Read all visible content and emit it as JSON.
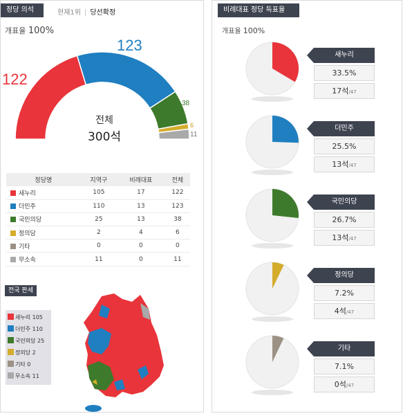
{
  "left": {
    "tab": "정당 의석수",
    "subtabs": {
      "first": "현재1위",
      "sep": "|",
      "second": "당선확정"
    },
    "turnout_label": "개표율",
    "turnout_value": "100%",
    "total_label": "전체",
    "total_value": "300석",
    "donut_labels": [
      "122",
      "123",
      "38",
      "6",
      "11"
    ],
    "table": {
      "headers": [
        "정당명",
        "지역구",
        "비례대표",
        "전체"
      ],
      "rows": [
        {
          "party": "새누리",
          "color": "#e8343a",
          "district": "105",
          "pr": "17",
          "total": "122"
        },
        {
          "party": "더민주",
          "color": "#1f7fc0",
          "district": "110",
          "pr": "13",
          "total": "123"
        },
        {
          "party": "국민의당",
          "color": "#3e7a2b",
          "district": "25",
          "pr": "13",
          "total": "38"
        },
        {
          "party": "정의당",
          "color": "#d4ac2c",
          "district": "2",
          "pr": "4",
          "total": "6"
        },
        {
          "party": "기타",
          "color": "#9b9185",
          "district": "0",
          "pr": "0",
          "total": "0"
        },
        {
          "party": "무소속",
          "color": "#a9a9a9",
          "district": "11",
          "pr": "0",
          "total": "11"
        }
      ]
    },
    "map_tab": "전국 판세",
    "legend": [
      {
        "label": "새누리 105",
        "color": "#e8343a"
      },
      {
        "label": "더민주 110",
        "color": "#1f7fc0"
      },
      {
        "label": "국민의당 25",
        "color": "#3e7a2b"
      },
      {
        "label": "정의당 2",
        "color": "#d4ac2c"
      },
      {
        "label": "기타 0",
        "color": "#9b9185"
      },
      {
        "label": "무소속 11",
        "color": "#a9a9a9"
      }
    ]
  },
  "right": {
    "tab": "비례대표 정당 득표율",
    "turnout_label": "개표율",
    "turnout_value": "100%",
    "cards": [
      {
        "name": "새누리",
        "pct": "33.5%",
        "seats": "17석",
        "of": "/47",
        "color": "#e8343a",
        "share": 0.335
      },
      {
        "name": "더민주",
        "pct": "25.5%",
        "seats": "13석",
        "of": "/47",
        "color": "#1f7fc0",
        "share": 0.255
      },
      {
        "name": "국민의당",
        "pct": "26.7%",
        "seats": "13석",
        "of": "/47",
        "color": "#3e7a2b",
        "share": 0.267
      },
      {
        "name": "정의당",
        "pct": "7.2%",
        "seats": "4석",
        "of": "/47",
        "color": "#d4ac2c",
        "share": 0.072
      },
      {
        "name": "기타",
        "pct": "7.1%",
        "seats": "0석",
        "of": "/47",
        "color": "#9b9185",
        "share": 0.071
      }
    ]
  }
}
